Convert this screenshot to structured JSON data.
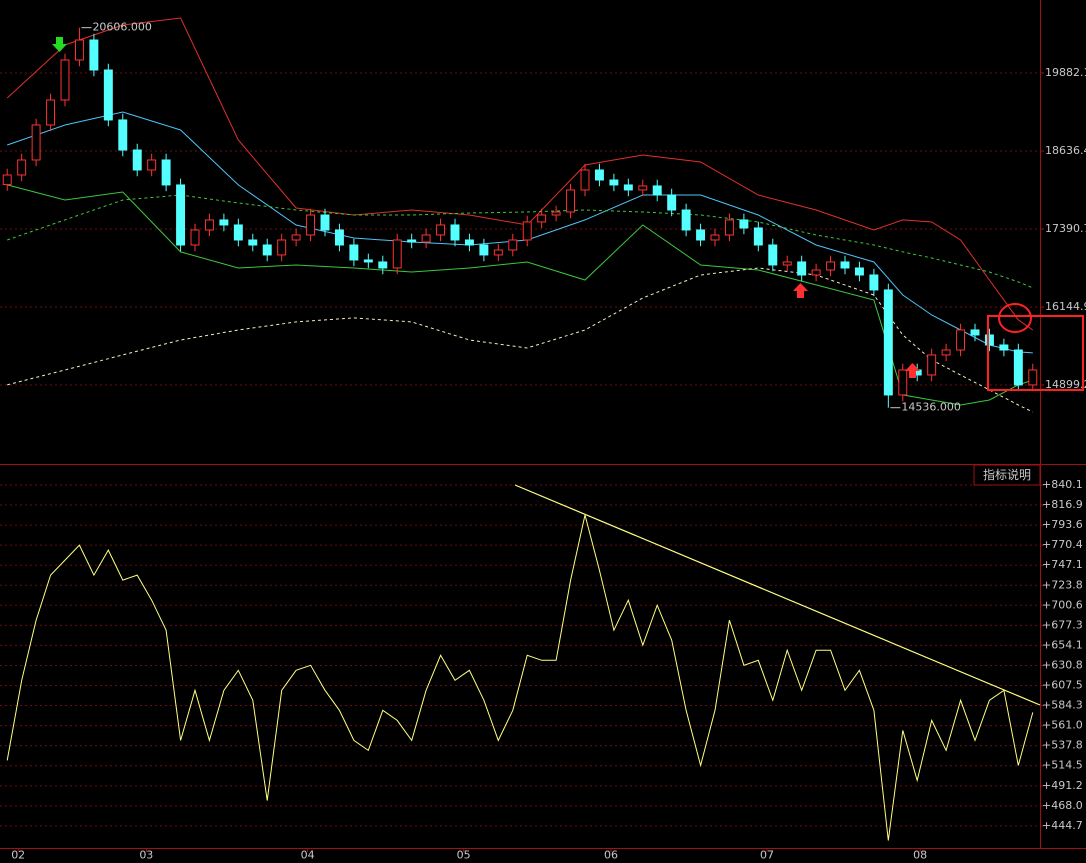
{
  "chart_data": [
    {
      "type": "candlestick",
      "x": [
        0,
        1,
        2,
        3,
        4,
        5,
        6,
        7,
        8,
        9,
        10,
        11,
        12,
        13,
        14,
        15,
        16,
        17,
        18,
        19,
        20,
        21,
        22,
        23,
        24,
        25,
        26,
        27,
        28,
        29,
        30,
        31,
        32,
        33,
        34,
        35,
        36,
        37,
        38,
        39,
        40,
        41,
        42,
        43,
        44,
        45,
        46,
        47,
        48,
        49,
        50,
        51,
        52,
        53,
        54,
        55,
        56,
        57,
        58,
        59,
        60,
        61,
        62,
        63,
        64,
        65,
        66,
        67,
        68,
        69,
        70,
        71
      ],
      "open": [
        18100,
        18253,
        18493,
        19052,
        19451,
        20090,
        20409,
        19930,
        19132,
        18652,
        18333,
        18493,
        18094,
        17135,
        17375,
        17535,
        17455,
        17215,
        17135,
        16976,
        17215,
        17295,
        17614,
        17375,
        17135,
        16896,
        16864,
        16768,
        17215,
        17183,
        17295,
        17455,
        17215,
        17135,
        16976,
        17055,
        17215,
        17503,
        17614,
        17662,
        18014,
        18333,
        18173,
        18094,
        18014,
        18078,
        17934,
        17694,
        17375,
        17215,
        17295,
        17535,
        17407,
        17135,
        16816,
        16864,
        16656,
        16736,
        16864,
        16768,
        16656,
        16417,
        14740,
        15139,
        15059,
        15379,
        15458,
        15778,
        15698,
        15538,
        15458,
        14900
      ],
      "high": [
        18353,
        18593,
        19152,
        19551,
        20190,
        20606,
        20509,
        20030,
        19232,
        18752,
        18593,
        18593,
        18194,
        17475,
        17635,
        17635,
        17555,
        17315,
        17235,
        17315,
        17395,
        17714,
        17714,
        17475,
        17235,
        16996,
        16964,
        17315,
        17315,
        17395,
        17555,
        17555,
        17315,
        17235,
        17155,
        17315,
        17603,
        17714,
        17762,
        18114,
        18433,
        18433,
        18273,
        18194,
        18178,
        18178,
        18034,
        17794,
        17475,
        17395,
        17635,
        17635,
        17507,
        17235,
        16964,
        16964,
        16836,
        16964,
        16964,
        16868,
        16756,
        16517,
        15239,
        15239,
        15479,
        15558,
        15878,
        15878,
        15798,
        15638,
        15558,
        15239
      ],
      "low": [
        18000,
        18153,
        18393,
        18952,
        19351,
        19990,
        19830,
        19032,
        18552,
        18233,
        18233,
        17994,
        17035,
        17035,
        17275,
        17355,
        17115,
        17035,
        16876,
        16876,
        17115,
        17195,
        17275,
        17035,
        16796,
        16764,
        16668,
        16668,
        17083,
        17083,
        17195,
        17115,
        17035,
        16876,
        16876,
        16955,
        17115,
        17403,
        17514,
        17562,
        17914,
        18073,
        17994,
        17914,
        17914,
        17834,
        17594,
        17275,
        17115,
        17115,
        17195,
        17307,
        17035,
        16716,
        16716,
        16556,
        16556,
        16636,
        16668,
        16556,
        16317,
        14536,
        14640,
        14959,
        14959,
        15279,
        15358,
        15598,
        15438,
        15358,
        14800,
        14800
      ],
      "close": [
        18253,
        18493,
        19052,
        19451,
        20090,
        20409,
        19930,
        19132,
        18652,
        18333,
        18493,
        18094,
        17135,
        17375,
        17535,
        17455,
        17215,
        17135,
        16976,
        17215,
        17295,
        17614,
        17375,
        17135,
        16896,
        16864,
        16768,
        17215,
        17183,
        17295,
        17455,
        17215,
        17135,
        16976,
        17055,
        17215,
        17503,
        17614,
        17662,
        18014,
        18333,
        18173,
        18094,
        18014,
        18078,
        17934,
        17694,
        17375,
        17215,
        17295,
        17535,
        17407,
        17135,
        16816,
        16864,
        16656,
        16736,
        16864,
        16768,
        16656,
        16417,
        14740,
        15139,
        15059,
        15379,
        15458,
        15778,
        15698,
        15538,
        15458,
        14900,
        15139
      ],
      "up_color": "#ff3232",
      "down_color": "#54ffff",
      "xlim": [
        -0.5,
        71.5
      ],
      "ylim": [
        13653,
        21048
      ],
      "yticks": [
        19882.1,
        18636.4,
        17390.7,
        16144.9,
        14899.2
      ],
      "grid": true,
      "series": [
        {
          "color": "#e0312b",
          "dashed": false,
          "x": [
            0,
            4,
            8,
            12,
            16,
            20,
            24,
            28,
            32,
            36,
            40,
            44,
            48,
            52,
            56,
            60,
            62,
            64,
            66,
            68,
            70,
            71
          ],
          "values": [
            19483,
            20329,
            20649,
            20761,
            18812,
            17726,
            17614,
            17694,
            17614,
            17455,
            18413,
            18573,
            18461,
            17934,
            17694,
            17375,
            17535,
            17503,
            17215,
            16576,
            15938,
            15778
          ]
        },
        {
          "color": "#4fc3f7",
          "dashed": false,
          "x": [
            0,
            4,
            8,
            12,
            16,
            20,
            24,
            28,
            32,
            36,
            40,
            44,
            48,
            52,
            56,
            60,
            62,
            64,
            66,
            68,
            70,
            71
          ],
          "values": [
            18732,
            19052,
            19259,
            18972,
            18094,
            17455,
            17247,
            17183,
            17135,
            17215,
            17535,
            17934,
            17934,
            17614,
            17135,
            16864,
            16337,
            16017,
            15778,
            15538,
            15427,
            15411
          ]
        },
        {
          "color": "#3cc83c",
          "dashed": false,
          "x": [
            0,
            4,
            8,
            12,
            16,
            20,
            24,
            28,
            32,
            36,
            40,
            44,
            48,
            52,
            56,
            60,
            62,
            64,
            66,
            68,
            70,
            71
          ],
          "values": [
            18094,
            17854,
            17982,
            17024,
            16768,
            16816,
            16768,
            16704,
            16768,
            16864,
            16576,
            17455,
            16816,
            16736,
            16497,
            16257,
            14740,
            14660,
            14580,
            14660,
            14900,
            14979
          ]
        },
        {
          "color": "#3cc83c",
          "dashed": true,
          "x": [
            0,
            4,
            8,
            12,
            16,
            20,
            24,
            28,
            32,
            36,
            40,
            44,
            48,
            52,
            56,
            60,
            62,
            64,
            66,
            68,
            70,
            71
          ],
          "values": [
            17215,
            17535,
            17854,
            17934,
            17806,
            17694,
            17614,
            17614,
            17646,
            17662,
            17694,
            17662,
            17614,
            17503,
            17295,
            17135,
            17024,
            16928,
            16816,
            16704,
            16545,
            16449
          ]
        },
        {
          "color": "#f0f0c0",
          "dashed": true,
          "x": [
            0,
            4,
            8,
            12,
            16,
            20,
            24,
            28,
            32,
            36,
            40,
            44,
            48,
            52,
            56,
            60,
            62,
            64,
            66,
            68,
            70,
            71
          ],
          "values": [
            14900,
            15139,
            15379,
            15618,
            15778,
            15906,
            15970,
            15906,
            15618,
            15490,
            15778,
            16289,
            16656,
            16768,
            16656,
            16337,
            15698,
            15299,
            15059,
            14820,
            14580,
            14468
          ]
        }
      ],
      "extremes": [
        {
          "x": 5,
          "value": 20606,
          "label": "20606.000"
        },
        {
          "x": 61,
          "value": 14536,
          "label": "14536.000"
        }
      ]
    },
    {
      "type": "line",
      "x": [
        0,
        1,
        2,
        3,
        4,
        5,
        6,
        7,
        8,
        9,
        10,
        11,
        12,
        13,
        14,
        15,
        16,
        17,
        18,
        19,
        20,
        21,
        22,
        23,
        24,
        25,
        26,
        27,
        28,
        29,
        30,
        31,
        32,
        33,
        34,
        35,
        36,
        37,
        38,
        39,
        40,
        41,
        42,
        43,
        44,
        45,
        46,
        47,
        48,
        49,
        50,
        51,
        52,
        53,
        54,
        55,
        56,
        57,
        58,
        59,
        60,
        61,
        62,
        63,
        64,
        65,
        66,
        67,
        68,
        69,
        70,
        71
      ],
      "values": [
        520.7,
        613.6,
        683.3,
        735.6,
        753.0,
        770.4,
        735.6,
        764.6,
        729.8,
        735.6,
        706.5,
        671.7,
        543.9,
        602.0,
        543.9,
        602.0,
        625.2,
        590.4,
        474.2,
        602.0,
        625.2,
        631.0,
        602.0,
        578.8,
        543.9,
        532.3,
        578.8,
        567.1,
        543.9,
        602.0,
        642.6,
        613.6,
        625.2,
        590.4,
        543.9,
        578.8,
        642.6,
        636.8,
        636.8,
        729.8,
        805.3,
        741.4,
        671.7,
        706.5,
        654.3,
        700.7,
        660.1,
        578.8,
        514.9,
        578.8,
        683.3,
        631.0,
        636.8,
        590.4,
        648.5,
        602.0,
        648.5,
        648.5,
        602.0,
        625.2,
        578.8,
        427.8,
        555.5,
        497.5,
        567.1,
        532.3,
        590.4,
        543.9,
        590.4,
        602.0,
        514.9,
        576.4
      ],
      "color": "#ffff80",
      "xlim": [
        -0.5,
        71.5
      ],
      "ylim": [
        419.1,
        863.3
      ],
      "yticks": [
        {
          "value": 840.1,
          "label": "+840.1"
        },
        {
          "value": 816.9,
          "label": "+816.9"
        },
        {
          "value": 793.6,
          "label": "+793.6"
        },
        {
          "value": 770.4,
          "label": "+770.4"
        },
        {
          "value": 747.1,
          "label": "+747.1"
        },
        {
          "value": 723.8,
          "label": "+723.8"
        },
        {
          "value": 700.6,
          "label": "+700.6"
        },
        {
          "value": 677.3,
          "label": "+677.3"
        },
        {
          "value": 654.1,
          "label": "+654.1"
        },
        {
          "value": 630.8,
          "label": "+630.8"
        },
        {
          "value": 607.5,
          "label": "+607.5"
        },
        {
          "value": 584.3,
          "label": "+584.3"
        },
        {
          "value": 561.0,
          "label": "+561.0"
        },
        {
          "value": 537.8,
          "label": "+537.8"
        },
        {
          "value": 514.5,
          "label": "+514.5"
        },
        {
          "value": 491.2,
          "label": "+491.2"
        },
        {
          "value": 468.0,
          "label": "+468.0"
        },
        {
          "value": 444.7,
          "label": "+444.7"
        }
      ],
      "xticks": [
        {
          "value": 0.76,
          "label": "02"
        },
        {
          "value": 9.63,
          "label": "03"
        },
        {
          "value": 20.8,
          "label": "04"
        },
        {
          "value": 31.6,
          "label": "05"
        },
        {
          "value": 41.8,
          "label": "06"
        },
        {
          "value": 52.6,
          "label": "07"
        },
        {
          "value": 63.2,
          "label": "08"
        }
      ],
      "grid": true,
      "button": "指标说明"
    }
  ]
}
